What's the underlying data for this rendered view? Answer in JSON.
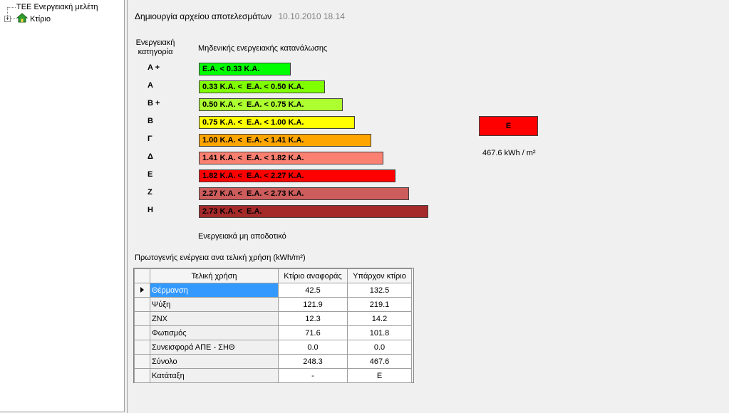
{
  "tree": {
    "root_label": "TEE Ενεργειακή μελέτη",
    "child_label": "Κτίριο",
    "child_expander": "+"
  },
  "header": {
    "title": "Δημιουργία αρχείου αποτελεσμάτων",
    "date": "10.10.2010 18.14"
  },
  "scale": {
    "category_title_line1": "Ενεργειακή",
    "category_title_line2": "κατηγορία",
    "top_caption": "Μηδενικής ενεργειακής κατανάλωσης",
    "bottom_caption": "Ενεργειακά μη αποδοτικό",
    "classes": [
      {
        "letter": "A +",
        "label": "E.A. < 0.33 K.A.",
        "color": "#00ff00"
      },
      {
        "letter": "A",
        "label": "0.33 K.A. <  E.A. < 0.50 K.A.",
        "color": "#80ff00"
      },
      {
        "letter": "B +",
        "label": "0.50 K.A. <  E.A. < 0.75 K.A.",
        "color": "#adff2f"
      },
      {
        "letter": "B",
        "label": "0.75 K.A. <  E.A. < 1.00 K.A.",
        "color": "#ffff00"
      },
      {
        "letter": "Γ",
        "label": "1.00 K.A. <  E.A. < 1.41 K.A.",
        "color": "#ffa500"
      },
      {
        "letter": "Δ",
        "label": "1.41 K.A. <  E.A. < 1.82 K.A.",
        "color": "#fa8072"
      },
      {
        "letter": "E",
        "label": "1.82 K.A. <  E.A. < 2.27 K.A.",
        "color": "#ff0000"
      },
      {
        "letter": "Z",
        "label": "2.27 K.A. <  E.A. < 2.73 K.A.",
        "color": "#cd5c5c"
      },
      {
        "letter": "H",
        "label": "2.73 K.A. <  E.A.",
        "color": "#a52a2a"
      }
    ]
  },
  "result": {
    "class_label": "E",
    "value": "467.6 kWh / m²",
    "color": "#ff0000"
  },
  "table": {
    "caption": "Πρωτογενής ενέργεια ανα τελική χρήση (kWh/m²)",
    "columns": [
      "Τελική χρήση",
      "Κτίριο αναφοράς",
      "Υπάρχον κτίριο"
    ],
    "rows": [
      {
        "use": "Θέρμανση",
        "reference": "42.5",
        "existing": "132.5",
        "selected": true
      },
      {
        "use": "Ψύξη",
        "reference": "121.9",
        "existing": "219.1"
      },
      {
        "use": "ΖΝΧ",
        "reference": "12.3",
        "existing": "14.2"
      },
      {
        "use": "Φωτισμός",
        "reference": "71.6",
        "existing": "101.8"
      },
      {
        "use": "Συνεισφορά ΑΠΕ - ΣΗΘ",
        "reference": "0.0",
        "existing": "0.0"
      },
      {
        "use": "Σύνολο",
        "reference": "248.3",
        "existing": "467.6"
      },
      {
        "use": "Κατάταξη",
        "reference": "-",
        "existing": "E"
      }
    ]
  }
}
